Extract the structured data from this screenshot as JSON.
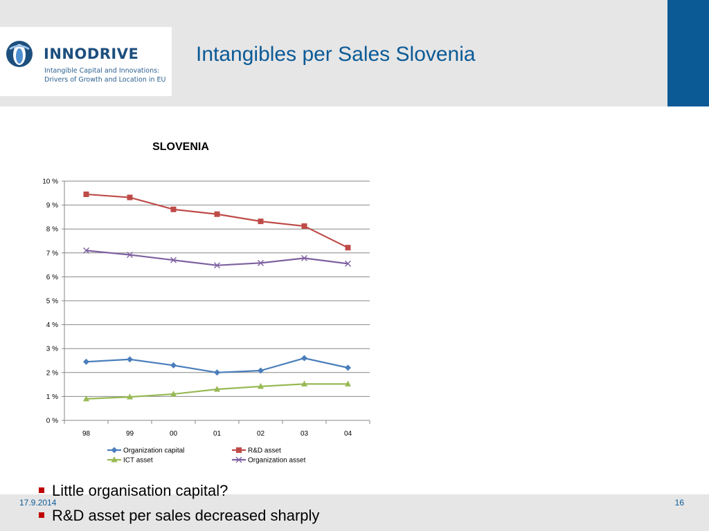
{
  "header": {
    "logo_name": "INNODRIVE",
    "logo_tagline_1": "Intangible Capital and Innovations:",
    "logo_tagline_2": "Drivers of Growth and Location in EU",
    "title": "Intangibles per Sales Slovenia"
  },
  "colors": {
    "accent": "#0b5a96",
    "header_bg": "#e6e6e6",
    "bullet": "#c00000"
  },
  "chart_data": {
    "type": "line",
    "title": "SLOVENIA",
    "categories": [
      "98",
      "99",
      "00",
      "01",
      "02",
      "03",
      "04"
    ],
    "yticks": [
      "0 %",
      "1 %",
      "2 %",
      "3 %",
      "4 %",
      "5 %",
      "6 %",
      "7 %",
      "8 %",
      "9 %",
      "10 %"
    ],
    "ylim": [
      0,
      10
    ],
    "grid": true,
    "legend_placement": "bottom",
    "series": [
      {
        "name": "Organization capital",
        "color": "#4a7ebb",
        "marker": "diamond",
        "values": [
          2.45,
          2.55,
          2.3,
          2.0,
          2.08,
          2.6,
          2.2
        ]
      },
      {
        "name": "R&D asset",
        "color": "#be4b48",
        "marker": "square",
        "values": [
          9.45,
          9.32,
          8.82,
          8.62,
          8.32,
          8.12,
          7.22
        ]
      },
      {
        "name": "ICT asset",
        "color": "#98b954",
        "marker": "triangle",
        "values": [
          0.9,
          0.98,
          1.1,
          1.3,
          1.42,
          1.52,
          1.52
        ]
      },
      {
        "name": "Organization asset",
        "color": "#7d60a0",
        "marker": "x",
        "values": [
          7.1,
          6.92,
          6.7,
          6.48,
          6.58,
          6.78,
          6.55
        ]
      }
    ]
  },
  "bullets": [
    "Little organisation capital?",
    "R&D asset per sales decreased sharply"
  ],
  "footer": {
    "date": "17.9.2014",
    "page": "16"
  }
}
